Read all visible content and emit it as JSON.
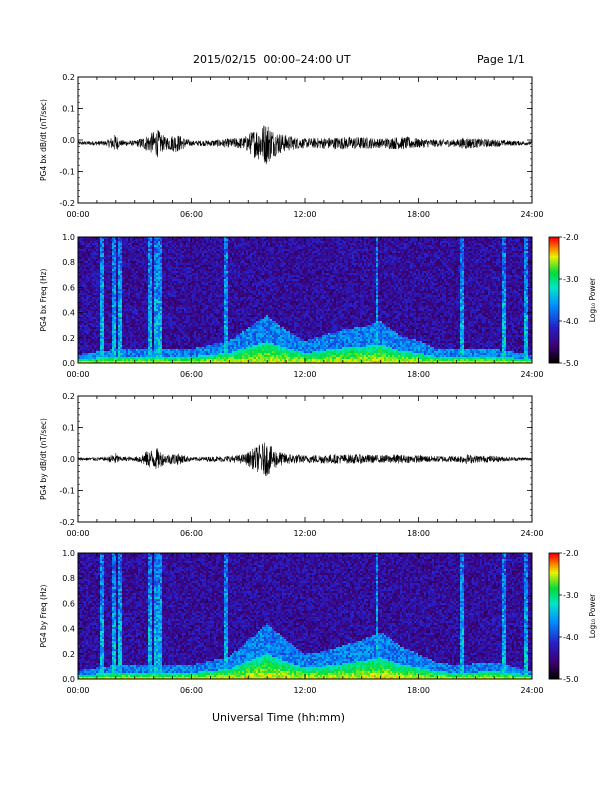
{
  "header": {
    "title": "2015/02/15  00:00–24:00 UT",
    "page": "Page 1/1"
  },
  "footer": {
    "xlabel": "Universal Time (hh:mm)"
  },
  "chart_data": [
    {
      "type": "line",
      "ylabel": "PG4 bx dB/dt (nT/sec)",
      "ylim": [
        -0.2,
        0.2
      ],
      "yticks": [
        "0.2",
        "0.1",
        "0.0",
        "-0.1",
        "-0.2"
      ],
      "xlim": [
        "00:00",
        "24:00"
      ],
      "xticks": [
        "00:00",
        "06:00",
        "12:00",
        "18:00",
        "24:00"
      ],
      "baseline": -0.01,
      "x_hours": [
        0,
        1.5,
        2,
        2.2,
        3,
        3.8,
        4.2,
        4.6,
        5.2,
        6,
        7,
        8,
        8.8,
        9.3,
        9.7,
        10,
        10.3,
        10.8,
        11.5,
        12,
        13,
        14,
        15,
        16,
        16.8,
        17.5,
        18,
        19,
        20,
        20.5,
        21,
        22,
        22.5,
        23,
        24
      ],
      "y_envelope": [
        0.006,
        0.008,
        0.03,
        0.01,
        0.008,
        0.03,
        0.045,
        0.02,
        0.03,
        0.008,
        0.01,
        0.015,
        0.02,
        0.045,
        0.06,
        0.07,
        0.045,
        0.03,
        0.02,
        0.015,
        0.018,
        0.02,
        0.02,
        0.015,
        0.02,
        0.02,
        0.015,
        0.012,
        0.012,
        0.02,
        0.015,
        0.012,
        0.01,
        0.008,
        0.006
      ],
      "grid": false
    },
    {
      "type": "heatmap",
      "ylabel": "PG4 bx Freq (Hz)",
      "ylim": [
        0.0,
        1.0
      ],
      "yticks": [
        "1.0",
        "0.8",
        "0.6",
        "0.4",
        "0.2",
        "0.0"
      ],
      "xlim": [
        "00:00",
        "24:00"
      ],
      "xticks": [
        "00:00",
        "06:00",
        "12:00",
        "18:00",
        "24:00"
      ],
      "colorbar": {
        "label": "Log₁₀ Power",
        "range": [
          -5.0,
          -2.0
        ],
        "ticks": [
          "-2.0",
          "-3.0",
          "-4.0",
          "-5.0"
        ]
      },
      "lowfreq_hours": [
        0,
        2,
        4,
        6,
        8,
        9.5,
        10,
        11,
        12,
        13,
        14,
        15,
        16,
        17,
        18,
        19,
        20,
        22,
        24
      ],
      "lowfreq_top_hz": [
        0.03,
        0.05,
        0.05,
        0.05,
        0.08,
        0.15,
        0.17,
        0.12,
        0.08,
        0.1,
        0.12,
        0.13,
        0.15,
        0.1,
        0.08,
        0.05,
        0.05,
        0.05,
        0.03
      ],
      "bursts_hours": [
        1.3,
        1.9,
        2.2,
        3.8,
        4.1,
        4.3,
        7.8,
        15.8,
        20.3,
        22.5,
        23.7
      ]
    },
    {
      "type": "line",
      "ylabel": "PG4 by dB/dt (nT/sec)",
      "ylim": [
        -0.2,
        0.2
      ],
      "yticks": [
        "0.2",
        "0.1",
        "0.0",
        "-0.1",
        "-0.2"
      ],
      "xlim": [
        "00:00",
        "24:00"
      ],
      "xticks": [
        "00:00",
        "06:00",
        "12:00",
        "18:00",
        "24:00"
      ],
      "baseline": 0.0,
      "x_hours": [
        0,
        1.5,
        2,
        2.2,
        3,
        3.8,
        4.2,
        4.6,
        5.2,
        6,
        7,
        8,
        8.8,
        9.3,
        9.7,
        10,
        10.3,
        10.8,
        11.5,
        12,
        13,
        14,
        15,
        16,
        16.8,
        17.5,
        18,
        19,
        20,
        20.5,
        21,
        22,
        22.5,
        23,
        24
      ],
      "y_envelope": [
        0.005,
        0.006,
        0.02,
        0.008,
        0.006,
        0.03,
        0.035,
        0.015,
        0.02,
        0.006,
        0.008,
        0.01,
        0.015,
        0.035,
        0.05,
        0.055,
        0.035,
        0.02,
        0.015,
        0.012,
        0.015,
        0.015,
        0.015,
        0.012,
        0.015,
        0.012,
        0.012,
        0.01,
        0.01,
        0.015,
        0.012,
        0.01,
        0.008,
        0.006,
        0.005
      ],
      "grid": false
    },
    {
      "type": "heatmap",
      "ylabel": "PG4 by Freq (Hz)",
      "ylim": [
        0.0,
        1.0
      ],
      "yticks": [
        "1.0",
        "0.8",
        "0.6",
        "0.4",
        "0.2",
        "0.0"
      ],
      "xlim": [
        "00:00",
        "24:00"
      ],
      "xticks": [
        "00:00",
        "06:00",
        "12:00",
        "18:00",
        "24:00"
      ],
      "colorbar": {
        "label": "Log₁₀ Power",
        "range": [
          -5.0,
          -2.0
        ],
        "ticks": [
          "-2.0",
          "-3.0",
          "-4.0",
          "-5.0"
        ]
      },
      "lowfreq_hours": [
        0,
        2,
        4,
        6,
        8,
        9.5,
        10,
        11,
        12,
        13,
        14,
        15,
        16,
        17,
        18,
        19,
        20,
        22,
        24
      ],
      "lowfreq_top_hz": [
        0.03,
        0.05,
        0.05,
        0.05,
        0.08,
        0.17,
        0.2,
        0.14,
        0.09,
        0.1,
        0.12,
        0.14,
        0.17,
        0.12,
        0.09,
        0.06,
        0.05,
        0.06,
        0.03
      ],
      "bursts_hours": [
        1.3,
        1.9,
        2.2,
        3.8,
        4.1,
        4.3,
        7.8,
        15.8,
        20.3,
        22.5,
        23.7
      ]
    }
  ]
}
